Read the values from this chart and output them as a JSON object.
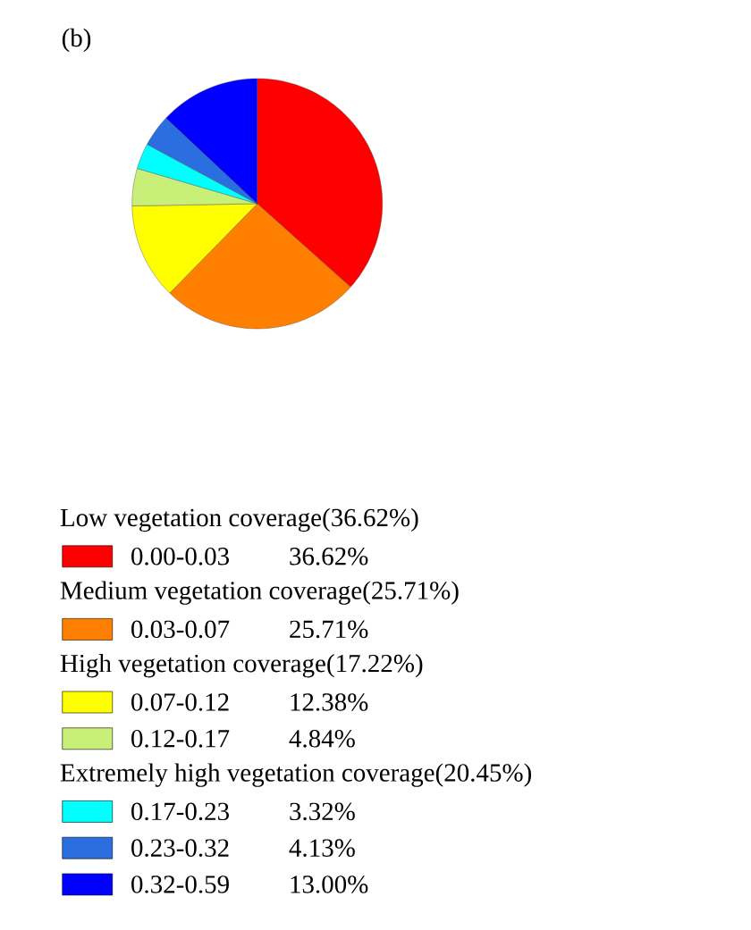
{
  "chart_data": {
    "type": "pie",
    "title": "(b)",
    "categories": [
      "0.00-0.03",
      "0.03-0.07",
      "0.07-0.12",
      "0.12-0.17",
      "0.17-0.23",
      "0.23-0.32",
      "0.32-0.59"
    ],
    "values": [
      36.62,
      25.71,
      12.38,
      4.84,
      3.32,
      4.13,
      13.0
    ],
    "value_labels": [
      "36.62%",
      "25.71%",
      "12.38%",
      "4.84%",
      "3.32%",
      "4.13%",
      "13.00%"
    ],
    "colors": [
      "#ff0000",
      "#ff8000",
      "#ffff00",
      "#c8f078",
      "#00ffff",
      "#2a6ee0",
      "#0000ff"
    ],
    "annotations": [
      "Low vegetation coverage(36.62%)",
      "Medium vegetation coverage(25.71%)",
      "High vegetation coverage(17.22%)",
      "Extremely high vegetation coverage(20.45%)"
    ],
    "legend": "bottom"
  }
}
